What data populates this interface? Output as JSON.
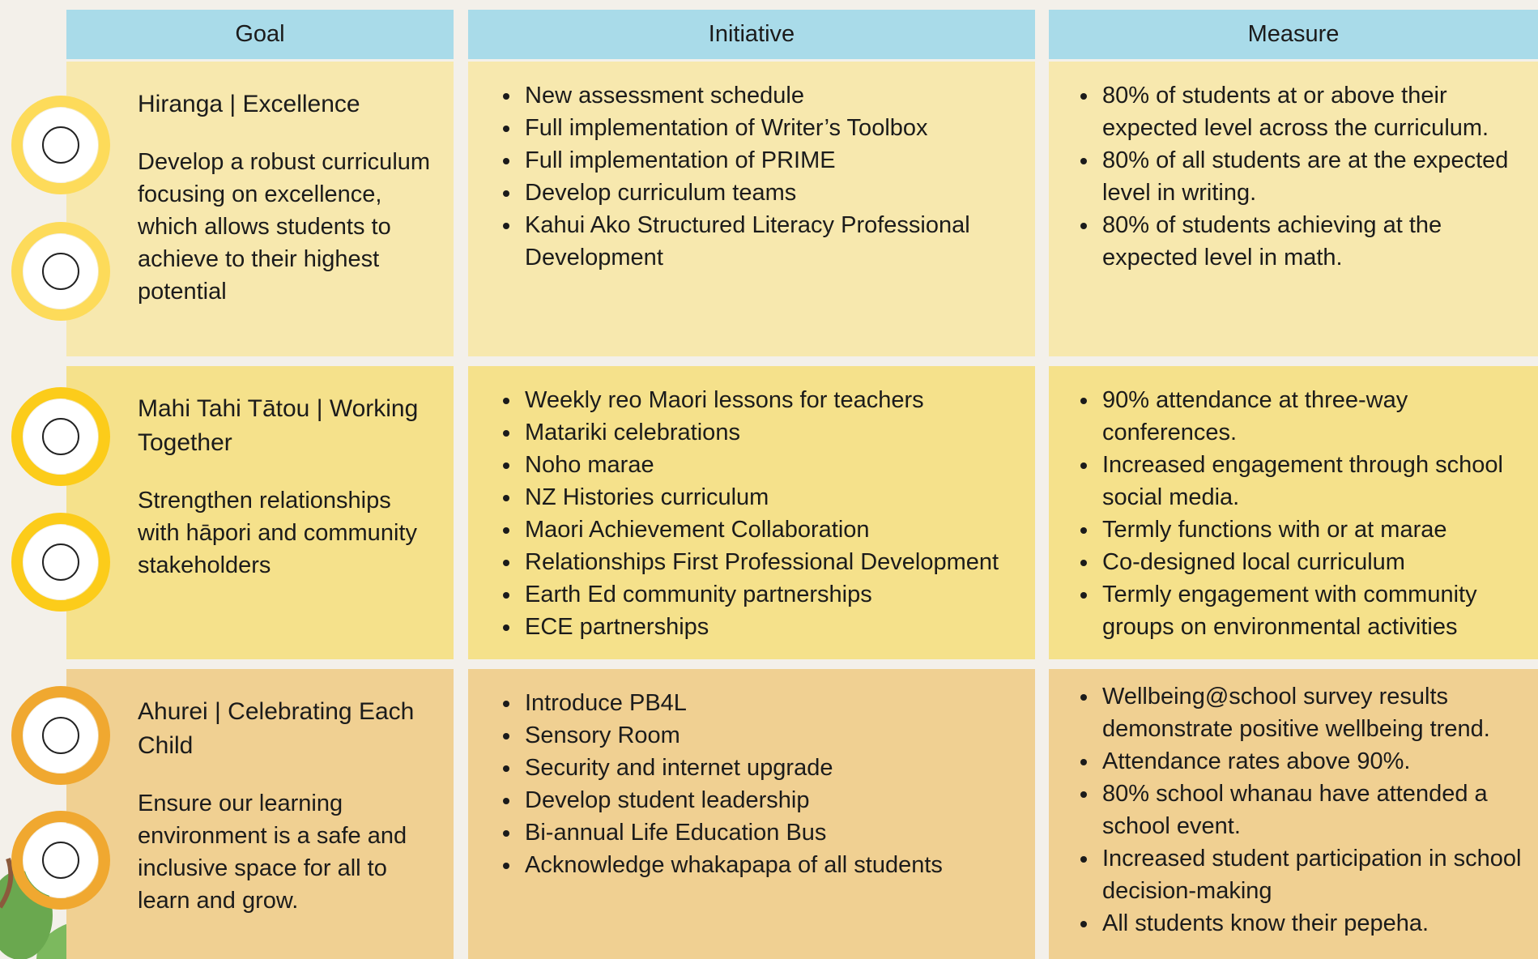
{
  "header": {
    "columns": [
      "Goal",
      "Initiative",
      "Measure"
    ]
  },
  "rows": [
    {
      "goal": {
        "title": "Hiranga | Excellence",
        "description": "Develop a robust curriculum focusing on excellence, which allows students to achieve to their highest potential"
      },
      "initiatives": [
        "New assessment schedule",
        "Full implementation of Writer’s Toolbox",
        "Full implementation of PRIME",
        "Develop curriculum teams",
        "Kahui Ako Structured Literacy Professional Development"
      ],
      "measures": [
        "80% of students at or above their expected level across the curriculum.",
        "80% of all students are at the expected level in writing.",
        "80% of students achieving at the expected level in math."
      ]
    },
    {
      "goal": {
        "title": "Mahi Tahi Tātou | Working Together",
        "description": "Strengthen relationships with hāpori and community stakeholders"
      },
      "initiatives": [
        "Weekly reo Maori lessons for teachers",
        "Matariki celebrations",
        "Noho marae",
        "NZ Histories curriculum",
        "Maori Achievement Collaboration",
        "Relationships First Professional Development",
        "Earth Ed community partnerships",
        "ECE partnerships"
      ],
      "measures": [
        "90% attendance at three-way conferences.",
        "Increased engagement through school social media.",
        "Termly functions with or at marae",
        "Co-designed local curriculum",
        "Termly engagement with community groups on environmental activities"
      ]
    },
    {
      "goal": {
        "title": "Ahurei | Celebrating Each Child",
        "description": "Ensure our learning environment is a safe and inclusive space for all to learn and grow."
      },
      "initiatives": [
        "Introduce PB4L",
        "Sensory Room",
        "Security and internet upgrade",
        "Develop student leadership",
        "Bi-annual Life Education Bus",
        "Acknowledge whakapapa of all students"
      ],
      "measures": [
        "Wellbeing@school survey results demonstrate positive wellbeing trend.",
        "Attendance rates above 90%.",
        "80% school whanau have attended a school event.",
        "Increased student participation in school decision-making",
        "All students know their pepeha."
      ]
    }
  ]
}
